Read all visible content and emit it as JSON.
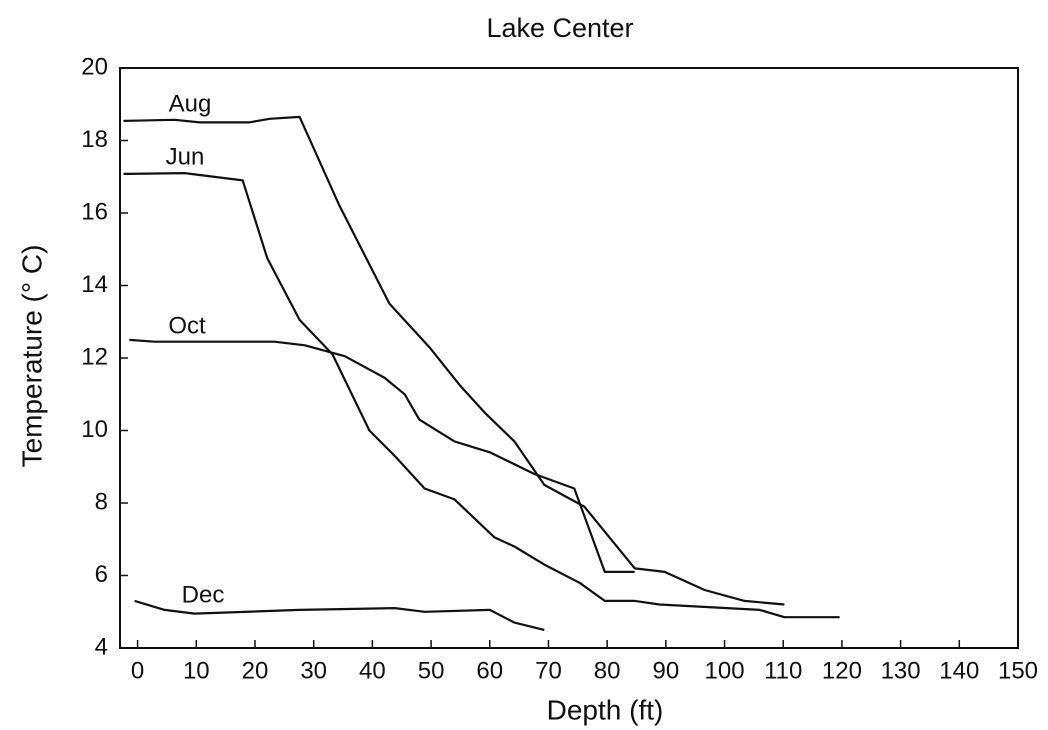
{
  "chart_data": {
    "type": "line",
    "title": "Lake Center",
    "x_label": "Depth (ft)",
    "y_label": "Temperature (° C)",
    "xlim": [
      -3,
      150
    ],
    "ylim": [
      4,
      20
    ],
    "xticks": [
      0,
      10,
      20,
      30,
      40,
      50,
      60,
      70,
      80,
      90,
      100,
      110,
      120,
      130,
      140,
      150
    ],
    "yticks": [
      4,
      6,
      8,
      10,
      12,
      14,
      16,
      18,
      20
    ],
    "series": [
      {
        "name": "Aug",
        "color": "#111111",
        "x": [
          -2.4,
          6.3,
          10.6,
          19,
          22.5,
          27.6,
          34.4,
          42.9,
          49.7,
          54.9,
          59.1,
          64.2,
          69.3,
          76.1,
          84.7,
          89.8,
          96.6,
          103.4,
          110.2
        ],
        "values": [
          18.54,
          18.57,
          18.5,
          18.5,
          18.6,
          18.65,
          16.2,
          13.5,
          12.3,
          11.25,
          10.5,
          9.7,
          8.5,
          7.9,
          6.2,
          6.1,
          5.6,
          5.3,
          5.2
        ]
      },
      {
        "name": "Jun",
        "color": "#111111",
        "x": [
          -2.4,
          8,
          17.9,
          22.1,
          27.6,
          33.2,
          39.5,
          43.8,
          48.9,
          54,
          60.8,
          64.2,
          69.3,
          75.3,
          79.6,
          84.7,
          88.9,
          106,
          110.2,
          119.6
        ],
        "values": [
          17.08,
          17.1,
          16.9,
          14.75,
          13.05,
          12.1,
          10,
          9.3,
          8.4,
          8.1,
          7.05,
          6.8,
          6.3,
          5.8,
          5.3,
          5.3,
          5.2,
          5.05,
          4.85,
          4.85
        ]
      },
      {
        "name": "Oct",
        "color": "#111111",
        "x": [
          -1.4,
          2.9,
          10.6,
          23.3,
          28.5,
          35.3,
          42.1,
          45.5,
          48,
          54,
          60,
          67.6,
          74.4,
          79.6,
          84.7
        ],
        "values": [
          12.5,
          12.45,
          12.45,
          12.45,
          12.35,
          12.05,
          11.45,
          11,
          10.3,
          9.7,
          9.4,
          8.8,
          8.4,
          6.1,
          6.1
        ]
      },
      {
        "name": "Dec",
        "color": "#111111",
        "x": [
          -0.5,
          4.6,
          9.7,
          27.6,
          43.8,
          48.9,
          60,
          64.2,
          69.3
        ],
        "values": [
          5.3,
          5.05,
          4.95,
          5.05,
          5.1,
          5.0,
          5.05,
          4.7,
          4.5
        ]
      }
    ]
  }
}
